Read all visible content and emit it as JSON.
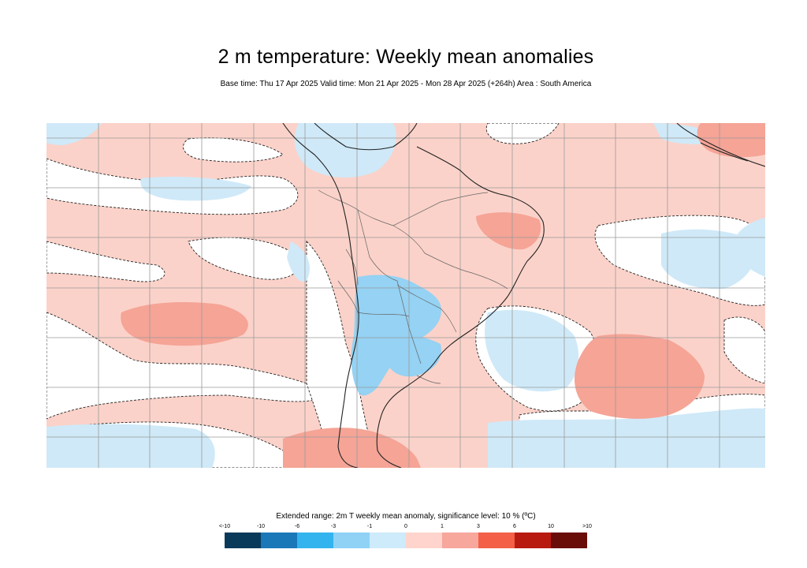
{
  "header": {
    "title": "2 m temperature: Weekly mean anomalies",
    "subtitle": "Base time: Thu 17 Apr 2025 Valid time: Mon 21 Apr 2025 - Mon 28 Apr 2025 (+264h) Area : South America"
  },
  "map": {
    "region": "South America",
    "projection_grid": true
  },
  "legend": {
    "title": "Extended range: 2m T weekly mean anomaly, significance level: 10 % (ºC)",
    "labels": [
      "<-10",
      "-10",
      "-6",
      "-3",
      "-1",
      "0",
      "1",
      "3",
      "6",
      "10",
      ">10"
    ],
    "colors": [
      "#0a3a5a",
      "#1a78b8",
      "#33b4ee",
      "#8fd2f6",
      "#cdebfa",
      "#ffd4cc",
      "#f7a79c",
      "#f45f47",
      "#b81a10",
      "#6a0c08"
    ]
  },
  "colors": {
    "background": "#ffffff",
    "map_warm_light": "#fbd2c9",
    "map_warm_mid": "#f5a496",
    "map_cool_light": "#cfe9f8",
    "map_cool_mid": "#95d2f3",
    "land_border": "#5a5a5a",
    "coastline": "#222222",
    "grid": "#9a9a9a"
  }
}
